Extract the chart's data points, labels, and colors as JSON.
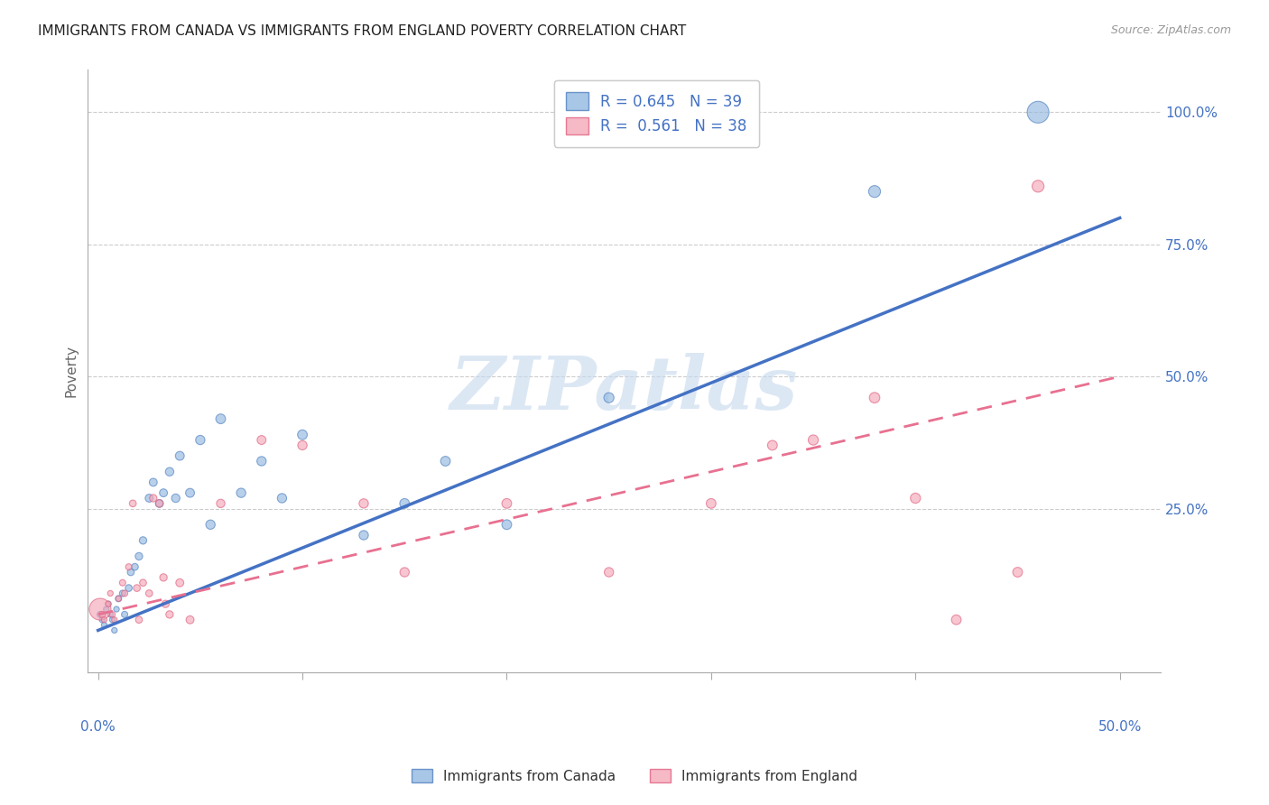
{
  "title": "IMMIGRANTS FROM CANADA VS IMMIGRANTS FROM ENGLAND POVERTY CORRELATION CHART",
  "source": "Source: ZipAtlas.com",
  "ylabel": "Poverty",
  "ytick_labels": [
    "100.0%",
    "75.0%",
    "50.0%",
    "25.0%"
  ],
  "ytick_vals": [
    1.0,
    0.75,
    0.5,
    0.25
  ],
  "watermark_text": "ZIPatlas",
  "legend_canada": "R = 0.645   N = 39",
  "legend_england": "R =  0.561   N = 38",
  "legend_label_canada": "Immigrants from Canada",
  "legend_label_england": "Immigrants from England",
  "blue_fill": "#92B8E0",
  "pink_fill": "#F4A8B8",
  "blue_edge": "#5080C0",
  "pink_edge": "#E06080",
  "blue_line": "#4472C4",
  "pink_line": "#E87090",
  "xlim": [
    -0.005,
    0.52
  ],
  "ylim": [
    -0.06,
    1.08
  ],
  "canada_points": [
    [
      0.001,
      0.05,
      25
    ],
    [
      0.002,
      0.04,
      20
    ],
    [
      0.003,
      0.03,
      20
    ],
    [
      0.004,
      0.06,
      20
    ],
    [
      0.005,
      0.07,
      20
    ],
    [
      0.006,
      0.05,
      20
    ],
    [
      0.007,
      0.04,
      20
    ],
    [
      0.008,
      0.02,
      20
    ],
    [
      0.009,
      0.06,
      20
    ],
    [
      0.01,
      0.08,
      25
    ],
    [
      0.012,
      0.09,
      25
    ],
    [
      0.013,
      0.05,
      25
    ],
    [
      0.015,
      0.1,
      30
    ],
    [
      0.016,
      0.13,
      30
    ],
    [
      0.018,
      0.14,
      30
    ],
    [
      0.02,
      0.16,
      35
    ],
    [
      0.022,
      0.19,
      35
    ],
    [
      0.025,
      0.27,
      40
    ],
    [
      0.027,
      0.3,
      40
    ],
    [
      0.03,
      0.26,
      40
    ],
    [
      0.032,
      0.28,
      40
    ],
    [
      0.035,
      0.32,
      45
    ],
    [
      0.038,
      0.27,
      45
    ],
    [
      0.04,
      0.35,
      50
    ],
    [
      0.045,
      0.28,
      50
    ],
    [
      0.05,
      0.38,
      55
    ],
    [
      0.055,
      0.22,
      55
    ],
    [
      0.06,
      0.42,
      60
    ],
    [
      0.07,
      0.28,
      55
    ],
    [
      0.08,
      0.34,
      55
    ],
    [
      0.09,
      0.27,
      55
    ],
    [
      0.1,
      0.39,
      60
    ],
    [
      0.13,
      0.2,
      55
    ],
    [
      0.15,
      0.26,
      60
    ],
    [
      0.17,
      0.34,
      60
    ],
    [
      0.2,
      0.22,
      60
    ],
    [
      0.25,
      0.46,
      65
    ],
    [
      0.38,
      0.85,
      90
    ],
    [
      0.46,
      1.0,
      300
    ]
  ],
  "england_points": [
    [
      0.001,
      0.06,
      300
    ],
    [
      0.002,
      0.05,
      25
    ],
    [
      0.003,
      0.04,
      20
    ],
    [
      0.005,
      0.07,
      20
    ],
    [
      0.006,
      0.09,
      20
    ],
    [
      0.007,
      0.05,
      20
    ],
    [
      0.008,
      0.04,
      20
    ],
    [
      0.01,
      0.08,
      20
    ],
    [
      0.012,
      0.11,
      25
    ],
    [
      0.013,
      0.09,
      25
    ],
    [
      0.015,
      0.14,
      25
    ],
    [
      0.017,
      0.26,
      30
    ],
    [
      0.019,
      0.1,
      30
    ],
    [
      0.02,
      0.04,
      30
    ],
    [
      0.022,
      0.11,
      30
    ],
    [
      0.025,
      0.09,
      30
    ],
    [
      0.027,
      0.27,
      35
    ],
    [
      0.03,
      0.26,
      35
    ],
    [
      0.032,
      0.12,
      35
    ],
    [
      0.033,
      0.07,
      35
    ],
    [
      0.035,
      0.05,
      35
    ],
    [
      0.04,
      0.11,
      40
    ],
    [
      0.045,
      0.04,
      40
    ],
    [
      0.06,
      0.26,
      45
    ],
    [
      0.08,
      0.38,
      50
    ],
    [
      0.1,
      0.37,
      55
    ],
    [
      0.13,
      0.26,
      55
    ],
    [
      0.15,
      0.13,
      55
    ],
    [
      0.2,
      0.26,
      60
    ],
    [
      0.25,
      0.13,
      55
    ],
    [
      0.3,
      0.26,
      60
    ],
    [
      0.33,
      0.37,
      60
    ],
    [
      0.35,
      0.38,
      65
    ],
    [
      0.38,
      0.46,
      70
    ],
    [
      0.4,
      0.27,
      65
    ],
    [
      0.42,
      0.04,
      60
    ],
    [
      0.45,
      0.13,
      60
    ],
    [
      0.46,
      0.86,
      90
    ]
  ],
  "canada_trendline": [
    0.0,
    0.02,
    0.5,
    0.8
  ],
  "england_trendline": [
    0.0,
    0.05,
    0.5,
    0.5
  ]
}
